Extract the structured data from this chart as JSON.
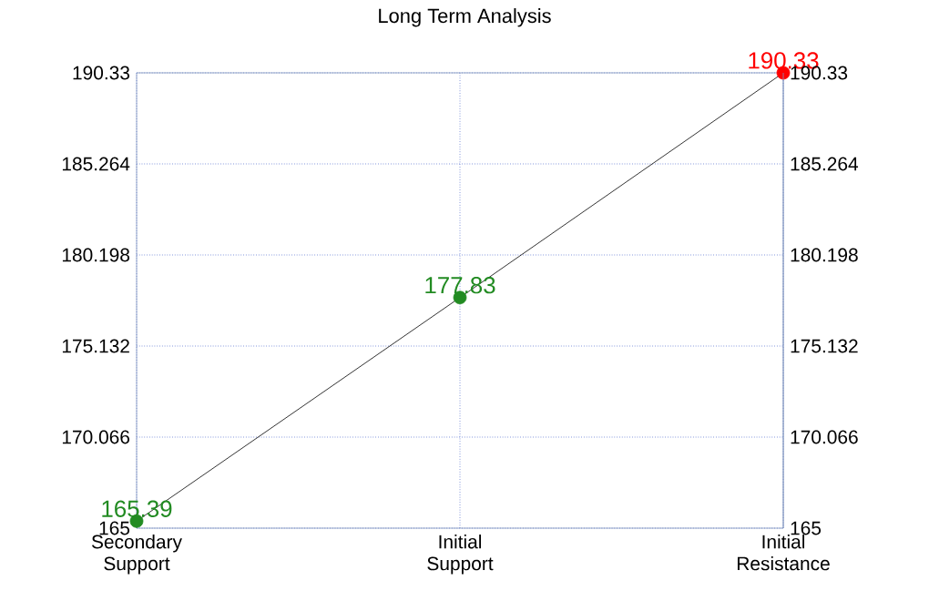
{
  "chart_data": {
    "type": "line",
    "title": "Long Term Analysis",
    "categories": [
      "Secondary Support",
      "Initial Support",
      "Initial Resistance"
    ],
    "series": [
      {
        "color": "#000000",
        "colors": [
          "#228b22",
          "#228b22",
          "#ff0000"
        ],
        "values": [
          165.39,
          177.83,
          190.33
        ]
      }
    ],
    "ylim": [
      165,
      190.33
    ],
    "yticks": [
      165,
      170.066,
      175.132,
      180.198,
      185.264,
      190.33
    ],
    "y2lim": [
      165,
      190.33
    ],
    "y2ticks": [
      165,
      170.066,
      175.132,
      180.198,
      185.264,
      190.33
    ],
    "grid": true,
    "marker": "circle",
    "data_labels": true
  }
}
